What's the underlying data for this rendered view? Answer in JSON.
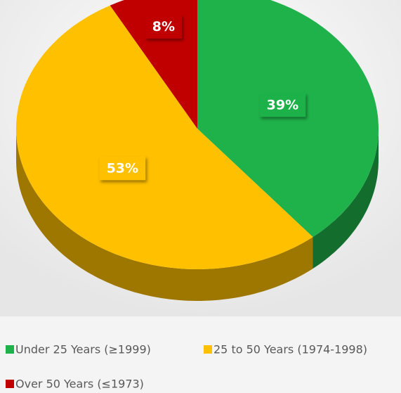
{
  "chart_data": {
    "type": "pie",
    "categories": [
      "Under 25 Years (≥1999)",
      "25 to 50 Years (1974-1998)",
      "Over 50 Years (≤1973)"
    ],
    "values": [
      39,
      53,
      8
    ],
    "value_labels": [
      "39%",
      "53%",
      "8%"
    ],
    "colors": [
      "#1fb24a",
      "#ffc000",
      "#c00000"
    ]
  }
}
